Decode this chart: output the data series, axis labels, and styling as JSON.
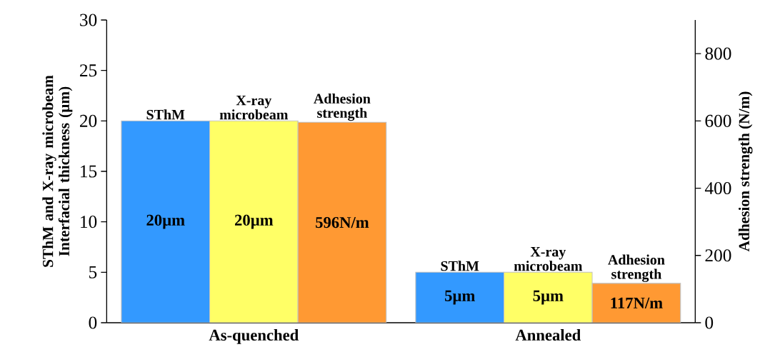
{
  "chart_data": {
    "type": "bar",
    "ylabel": "SThM and X-ray microbeam Interfacial thickness (µm)",
    "y2label": "Adhesion strength (N/m)",
    "categories": [
      "As-quenched",
      "Annealed"
    ],
    "series": [
      {
        "name": "SThM",
        "color": "#3399ff",
        "values": [
          20,
          5
        ],
        "value_labels": [
          "20µm",
          "5µm"
        ]
      },
      {
        "name": "X-ray microbeam",
        "color": "#ffff66",
        "values": [
          20,
          5
        ],
        "value_labels": [
          "20µm",
          "5µm"
        ]
      },
      {
        "name": "Adhesion strength",
        "color": "#ff9933",
        "values": [
          596,
          117
        ],
        "value_labels": [
          "596N/m",
          "117N/m"
        ],
        "axis": "y2"
      }
    ],
    "ylim": [
      0,
      30
    ],
    "yticks": [
      0,
      5,
      10,
      15,
      20,
      25,
      30
    ],
    "y2lim": [
      0,
      900
    ],
    "y2ticks": [
      0,
      200,
      400,
      600,
      800
    ]
  }
}
